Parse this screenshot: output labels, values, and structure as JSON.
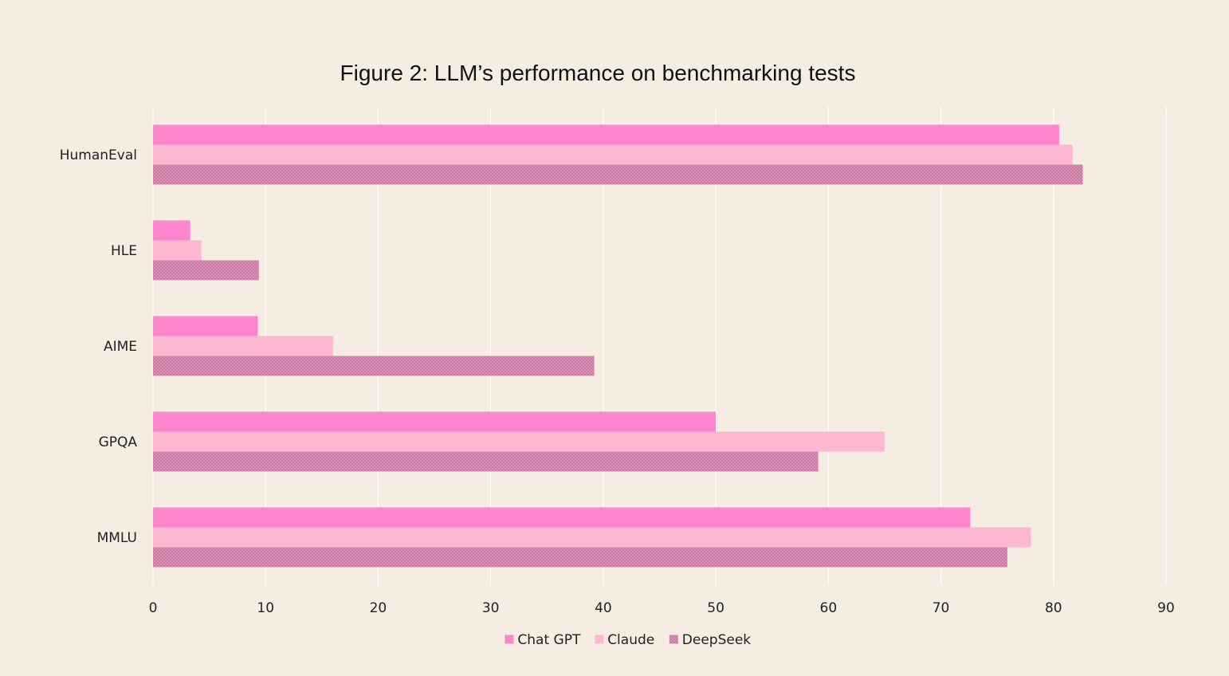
{
  "chart_data": {
    "type": "bar",
    "orientation": "horizontal",
    "title": "Figure 2: LLM’s performance on benchmarking tests",
    "xlabel": "",
    "ylabel": "",
    "xlim": [
      0,
      90
    ],
    "x_ticks": [
      0,
      10,
      20,
      30,
      40,
      50,
      60,
      70,
      80,
      90
    ],
    "grid": true,
    "legend_position": "bottom",
    "categories": [
      "HumanEval",
      "HLE",
      "AIME",
      "GPQA",
      "MMLU"
    ],
    "series": [
      {
        "name": "Chat GPT",
        "color": "#ff85cc",
        "pattern": "solid",
        "values": [
          80.5,
          3.3,
          9.3,
          50.0,
          72.6
        ]
      },
      {
        "name": "Claude",
        "color": "#ffb8d2",
        "pattern": "solid",
        "values": [
          81.7,
          4.3,
          16.0,
          65.0,
          78.0
        ]
      },
      {
        "name": "DeepSeek",
        "color": "#de90b7",
        "pattern": "crosshatch",
        "values": [
          82.6,
          9.4,
          39.2,
          59.1,
          75.9
        ]
      }
    ]
  }
}
